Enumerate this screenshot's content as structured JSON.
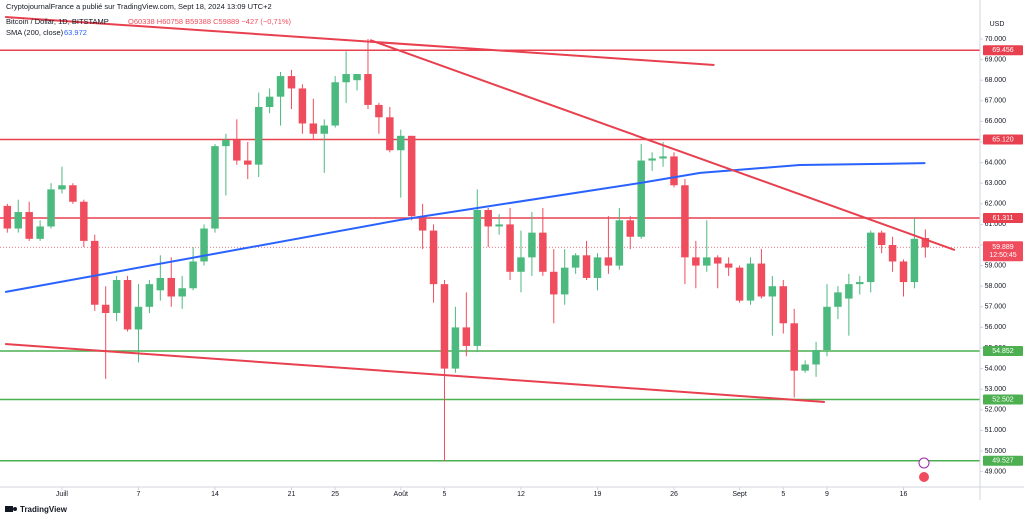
{
  "header": {
    "published": "CryptojournalFrance a publié sur TradingView.com, Sept 18, 2024 13:09 UTC+2",
    "symbol": "Bitcoin / Dollar, 1D, BITSTAMP",
    "ohlc": "O60338 H60758 B59388 C59889 −427 (−0,71%)"
  },
  "footer": "TradingView",
  "chart_data": {
    "type": "candlestick",
    "currency": "USD",
    "up_color": "#4cba7f",
    "down_color": "#ef4d5d",
    "xlim": [
      -5.67,
      84
    ],
    "ylim": [
      48252,
      71311
    ],
    "xticks": [
      {
        "value": 0,
        "label": "Juill"
      },
      7,
      14,
      21,
      25,
      {
        "value": 31,
        "label": "Août"
      },
      {
        "value": 35,
        "label": "5"
      },
      {
        "value": 42,
        "label": "12"
      },
      {
        "value": 49,
        "label": "19"
      },
      {
        "value": 56,
        "label": "26"
      },
      {
        "value": 62,
        "label": "Sept"
      },
      {
        "value": 66,
        "label": "5"
      },
      {
        "value": 70,
        "label": "9"
      },
      {
        "value": 77,
        "label": "16"
      }
    ],
    "yticks": [
      {
        "value": 49000,
        "label": "49.000"
      },
      {
        "value": 50000,
        "label": "50.000"
      },
      {
        "value": 51000,
        "label": "51.000"
      },
      {
        "value": 52000,
        "label": "52.000"
      },
      {
        "value": 53000,
        "label": "53.000"
      },
      {
        "value": 54000,
        "label": "54.000"
      },
      {
        "value": 55000,
        "label": "55.000"
      },
      {
        "value": 56000,
        "label": "56.000"
      },
      {
        "value": 57000,
        "label": "57.000"
      },
      {
        "value": 58000,
        "label": "58.000"
      },
      {
        "value": 59000,
        "label": "59.000"
      },
      {
        "value": 60000,
        "label": "60.000"
      },
      {
        "value": 61000,
        "label": "61.000"
      },
      {
        "value": 62000,
        "label": "62.000"
      },
      {
        "value": 63000,
        "label": "63.000"
      },
      {
        "value": 64000,
        "label": "64.000"
      },
      {
        "value": 65000,
        "label": "65.000"
      },
      {
        "value": 66000,
        "label": "66.000"
      },
      {
        "value": 67000,
        "label": "67.000"
      },
      {
        "value": 68000,
        "label": "68.000"
      },
      {
        "value": 69000,
        "label": "69.000"
      },
      {
        "value": 70000,
        "label": "70.000"
      }
    ],
    "x": [
      -5,
      -4,
      -3,
      -2,
      -1,
      0,
      1,
      2,
      3,
      4,
      5,
      6,
      7,
      8,
      9,
      10,
      11,
      12,
      13,
      14,
      15,
      16,
      17,
      18,
      19,
      20,
      21,
      22,
      23,
      24,
      25,
      26,
      27,
      28,
      29,
      30,
      31,
      32,
      33,
      34,
      35,
      36,
      37,
      38,
      39,
      40,
      41,
      42,
      43,
      44,
      45,
      46,
      47,
      48,
      49,
      50,
      51,
      52,
      53,
      54,
      55,
      56,
      57,
      58,
      59,
      60,
      61,
      62,
      63,
      64,
      65,
      66,
      67,
      68,
      69,
      70,
      71,
      72,
      73,
      74,
      75,
      76,
      77,
      78,
      79
    ],
    "open": [
      61900,
      60800,
      61600,
      60300,
      60900,
      62700,
      62900,
      62100,
      60200,
      57100,
      56700,
      58300,
      55900,
      57000,
      57800,
      58400,
      57500,
      57900,
      59200,
      60800,
      64800,
      65100,
      64100,
      63900,
      66700,
      67200,
      68200,
      67600,
      65900,
      65400,
      65800,
      67900,
      68000,
      68300,
      66800,
      66200,
      64600,
      65300,
      61400,
      60700,
      58100,
      54000,
      56000,
      55100,
      61700,
      60900,
      61000,
      58700,
      59400,
      60600,
      58700,
      57600,
      58900,
      59500,
      58400,
      59400,
      59000,
      61200,
      60400,
      64100,
      64200,
      64300,
      62900,
      59400,
      59000,
      59400,
      59100,
      58900,
      57300,
      59100,
      57500,
      58000,
      56200,
      53900,
      54200,
      54900,
      57000,
      57400,
      58100,
      58200,
      60600,
      60000,
      59200,
      58200,
      60338
    ],
    "high": [
      62000,
      62200,
      62100,
      61200,
      63000,
      63800,
      63000,
      62200,
      60500,
      58000,
      58500,
      58500,
      58100,
      58300,
      59500,
      59400,
      58500,
      59900,
      61000,
      64900,
      65400,
      66100,
      65000,
      67400,
      67600,
      68400,
      68500,
      67800,
      67100,
      66100,
      68200,
      69400,
      68300,
      70000,
      66900,
      66700,
      65600,
      65300,
      62000,
      61000,
      58300,
      57000,
      57700,
      62700,
      61800,
      61500,
      61800,
      60700,
      61600,
      61800,
      59800,
      59800,
      59600,
      60200,
      59600,
      61400,
      61800,
      61400,
      64900,
      64500,
      65000,
      64500,
      63200,
      60200,
      61200,
      59500,
      59400,
      59000,
      59400,
      59800,
      58500,
      58300,
      56900,
      54400,
      55300,
      58100,
      58000,
      58600,
      58500,
      60700,
      60700,
      60400,
      59300,
      61300,
      60758
    ],
    "low": [
      60600,
      60600,
      60200,
      60200,
      60800,
      62500,
      62000,
      59900,
      56800,
      53500,
      56300,
      55800,
      54300,
      56700,
      57300,
      57000,
      56900,
      57800,
      59000,
      60600,
      62400,
      63900,
      63200,
      63300,
      66400,
      65800,
      66600,
      65400,
      65100,
      63500,
      65700,
      66900,
      67500,
      66600,
      65400,
      64500,
      62300,
      61200,
      59800,
      57200,
      49500,
      53800,
      54600,
      54800,
      59900,
      60500,
      58300,
      57700,
      58500,
      58500,
      56200,
      57100,
      58600,
      58300,
      57800,
      58600,
      58800,
      59800,
      60300,
      63600,
      63800,
      62800,
      58100,
      57900,
      58700,
      57900,
      58500,
      57200,
      57100,
      57400,
      55600,
      55700,
      52600,
      53800,
      53600,
      54600,
      56400,
      55600,
      57600,
      57700,
      59600,
      58700,
      57500,
      57900,
      59388
    ],
    "close": [
      60800,
      61600,
      60300,
      60900,
      62700,
      62900,
      62100,
      60200,
      57100,
      56700,
      58300,
      55900,
      57000,
      58100,
      58400,
      57500,
      57900,
      59200,
      60800,
      64800,
      65100,
      64100,
      63900,
      66700,
      67200,
      68200,
      67600,
      65900,
      65400,
      65800,
      67900,
      68300,
      68300,
      66800,
      66200,
      64600,
      65300,
      61400,
      60700,
      58100,
      54000,
      56000,
      55100,
      61700,
      60900,
      61000,
      58700,
      59400,
      60600,
      58700,
      57600,
      58900,
      59500,
      58400,
      59400,
      59000,
      61200,
      60400,
      64100,
      64200,
      64300,
      62900,
      59400,
      59000,
      59400,
      59100,
      58900,
      57300,
      59100,
      57500,
      58000,
      56200,
      53900,
      54200,
      54900,
      57000,
      57700,
      58100,
      58200,
      60600,
      60000,
      59200,
      58200,
      60300,
      59889
    ],
    "sma": {
      "name": "SMA (200, close)",
      "value_label": "63.972",
      "color": "#2962ff",
      "x": [
        -5.2,
        30.9,
        52.9,
        58.4,
        67.5,
        79
      ],
      "values": [
        57718,
        61214,
        63010,
        63500,
        63883,
        63972
      ]
    },
    "trendlines": [
      {
        "color": "#e8404e",
        "x": [
          -5.2,
          59.7
        ],
        "values": [
          71068,
          68738
        ]
      },
      {
        "color": "#e8404e",
        "x": [
          28.2,
          81.7
        ],
        "values": [
          69951,
          59757
        ]
      },
      {
        "color": "#e8404e",
        "x": [
          -5.2,
          69.8
        ],
        "values": [
          55194,
          52379
        ]
      }
    ],
    "levels": [
      {
        "value": 69456,
        "label": "69.456",
        "color": "#e8404e"
      },
      {
        "value": 65120,
        "label": "65.120",
        "color": "#e8404e"
      },
      {
        "value": 61311,
        "label": "61.311",
        "color": "#e8404e"
      },
      {
        "value": 54852,
        "label": "54.852",
        "color": "#4caf50"
      },
      {
        "value": 52502,
        "label": "52.502",
        "color": "#4caf50"
      },
      {
        "value": 49527,
        "label": "49.527",
        "color": "#4caf50"
      }
    ],
    "last": {
      "value": 59889,
      "label": "59.889",
      "countdown": "12:50:45",
      "color": "#ef4d5d"
    }
  }
}
